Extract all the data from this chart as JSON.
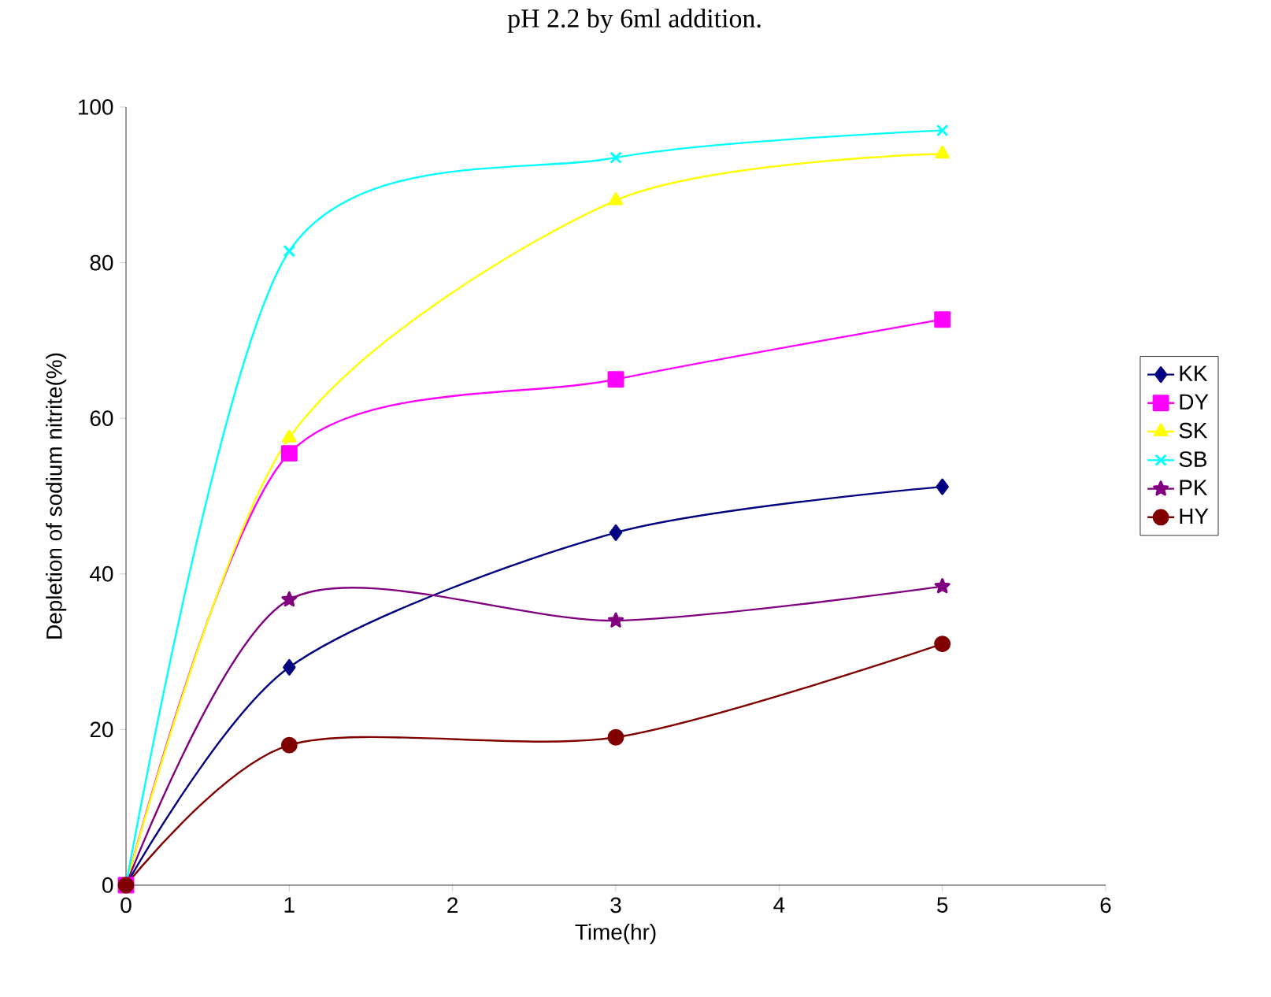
{
  "chart_data": {
    "type": "line",
    "title": "pH 2.2 by 6ml addition.",
    "xlabel": "Time(hr)",
    "ylabel": "Depletion of sodium nitrite(%)",
    "x": [
      0,
      1,
      3,
      5
    ],
    "xlim": [
      0,
      6
    ],
    "xticks": [
      0,
      1,
      2,
      3,
      4,
      5,
      6
    ],
    "ylim": [
      0,
      100
    ],
    "yticks": [
      0,
      20,
      40,
      60,
      80,
      100
    ],
    "legend": "right",
    "grid": false,
    "line_style": "solid",
    "series": [
      {
        "name": "KK",
        "color": "#000080",
        "marker": "diamond",
        "values": [
          0,
          28,
          45.3,
          51.2
        ]
      },
      {
        "name": "DY",
        "color": "#ff00ff",
        "marker": "square",
        "values": [
          0,
          55.5,
          65,
          72.7
        ]
      },
      {
        "name": "SK",
        "color": "#ffff00",
        "marker": "triangle",
        "values": [
          0,
          57.5,
          88,
          94
        ]
      },
      {
        "name": "SB",
        "color": "#00ffff",
        "marker": "cross",
        "values": [
          0,
          81.5,
          93.5,
          97
        ]
      },
      {
        "name": "PK",
        "color": "#800080",
        "marker": "star",
        "values": [
          0,
          36.7,
          34,
          38.4
        ]
      },
      {
        "name": "HY",
        "color": "#800000",
        "marker": "circle",
        "values": [
          0,
          18,
          19,
          31
        ]
      }
    ]
  }
}
